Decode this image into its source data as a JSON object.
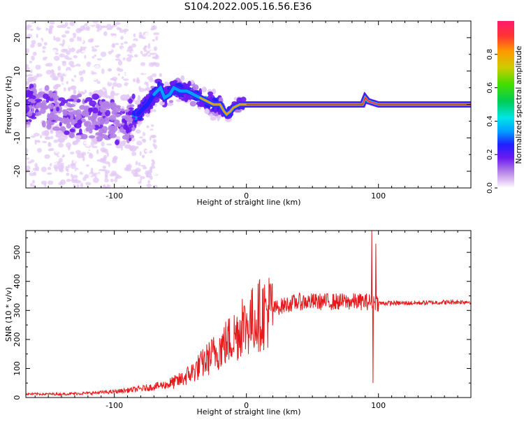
{
  "figure": {
    "title": "S104.2022.005.16.56.E36"
  },
  "colors": {
    "snr_line": "#e41a1c",
    "colormap": [
      "#ffffff",
      "#e3c8f5",
      "#b37fe6",
      "#6b19f0",
      "#2020ff",
      "#00a0ff",
      "#00e6e6",
      "#00cc55",
      "#44dd00",
      "#cccc00",
      "#ff9900",
      "#ff3333",
      "#ff1a6e"
    ]
  },
  "chart_data": [
    {
      "type": "heatmap",
      "xlabel": "Height of straight line (km)",
      "ylabel": "Frequency (Hz)",
      "xlim": [
        -167,
        170
      ],
      "ylim": [
        -25,
        25
      ],
      "x_ticks": [
        -100,
        0,
        100
      ],
      "y_ticks": [
        -20,
        -10,
        0,
        10,
        20
      ],
      "colorbar": {
        "label": "Normalized spectral amplitude",
        "range": [
          0,
          1
        ],
        "ticks": [
          0.0,
          0.2,
          0.4,
          0.6,
          0.8
        ]
      },
      "ridge": {
        "x": [
          -167,
          -150,
          -130,
          -110,
          -100,
          -90,
          -85,
          -80,
          -75,
          -70,
          -65,
          -62,
          -58,
          -55,
          -50,
          -45,
          -40,
          -35,
          -30,
          -25,
          -20,
          -17,
          -15,
          -12,
          -10,
          -5,
          0,
          5,
          10,
          20,
          40,
          60,
          80,
          85,
          88,
          90,
          92,
          100,
          120,
          140,
          170
        ],
        "y": [
          1,
          -1,
          -3,
          -4,
          -5,
          -5,
          -4,
          -2,
          0,
          3,
          5,
          2,
          3,
          5,
          4,
          4,
          3,
          2,
          1,
          0,
          0,
          -2,
          -3,
          -2,
          -1,
          0,
          0,
          0,
          0,
          0,
          0,
          0,
          0,
          0,
          0,
          2,
          1,
          0,
          0,
          0,
          0
        ]
      }
    },
    {
      "type": "line",
      "xlabel": "Height of straight line (km)",
      "ylabel": "SNR (10 * v/v)",
      "xlim": [
        -167,
        170
      ],
      "ylim": [
        0,
        575
      ],
      "x_ticks": [
        -100,
        0,
        100
      ],
      "y_ticks": [
        0,
        100,
        200,
        300,
        400,
        500
      ],
      "trend": {
        "x": [
          -167,
          -140,
          -120,
          -100,
          -80,
          -60,
          -50,
          -40,
          -30,
          -20,
          -10,
          0,
          10,
          20,
          30,
          40,
          60,
          80,
          90,
          95,
          100,
          120,
          140,
          170
        ],
        "y": [
          12,
          12,
          15,
          20,
          30,
          45,
          60,
          90,
          130,
          170,
          210,
          250,
          285,
          305,
          320,
          330,
          330,
          330,
          330,
          330,
          325,
          325,
          327,
          330
        ]
      },
      "spikes": [
        {
          "x": -3,
          "y": 340
        },
        {
          "x": 95,
          "y": 575
        },
        {
          "x": 96,
          "y": 50
        },
        {
          "x": 98,
          "y": 530
        }
      ]
    }
  ]
}
